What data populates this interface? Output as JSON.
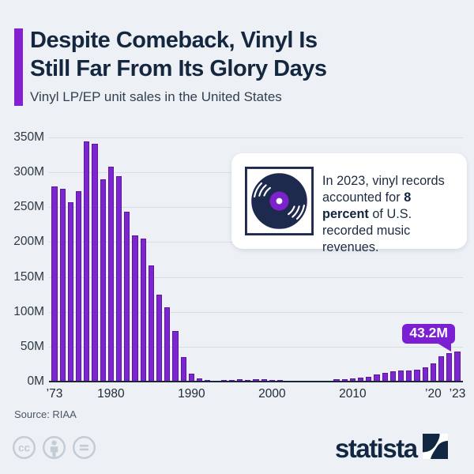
{
  "header": {
    "title_lines": [
      "Despite Comeback, Vinyl Is",
      "Still Far From Its Glory Days"
    ],
    "subtitle": "Vinyl LP/EP unit sales in the United States"
  },
  "callout": {
    "icon": "vinyl-record-icon",
    "text_before": "In 2023, vinyl records accounted for ",
    "text_bold": "8 percent",
    "text_after": " of U.S. recorded music revenues."
  },
  "chart_data": {
    "type": "bar",
    "title": "Vinyl LP/EP unit sales in the United States",
    "unit": "million units",
    "ylim": [
      0,
      350
    ],
    "grid": true,
    "bar_color": "#7D26CF",
    "yticks": [
      {
        "value": 0,
        "label": "0M"
      },
      {
        "value": 50,
        "label": "50M"
      },
      {
        "value": 100,
        "label": "100M"
      },
      {
        "value": 150,
        "label": "150M"
      },
      {
        "value": 200,
        "label": "200M"
      },
      {
        "value": 250,
        "label": "250M"
      },
      {
        "value": 300,
        "label": "300M"
      },
      {
        "value": 350,
        "label": "350M"
      }
    ],
    "xticks": [
      {
        "year": 1973,
        "label": "’73"
      },
      {
        "year": 1980,
        "label": "1980"
      },
      {
        "year": 1990,
        "label": "1990"
      },
      {
        "year": 2000,
        "label": "2000"
      },
      {
        "year": 2010,
        "label": "2010"
      },
      {
        "year": 2020,
        "label": "’20"
      },
      {
        "year": 2023,
        "label": "’23"
      }
    ],
    "years_start": 1973,
    "years_end": 2023,
    "values": [
      280,
      276,
      257,
      273,
      344,
      341,
      290,
      308,
      295,
      244,
      210,
      205,
      167,
      125,
      107,
      72,
      35,
      11.7,
      4.8,
      2.4,
      1.5,
      1.9,
      2.2,
      2.9,
      2.7,
      3.4,
      2.9,
      2.2,
      2.3,
      1.7,
      1.5,
      1.4,
      1.0,
      0.9,
      1.3,
      2.9,
      3.5,
      4.2,
      5.5,
      6.5,
      10,
      12.5,
      14.5,
      15.5,
      16,
      17,
      20,
      26,
      36.5,
      40.5,
      43.2
    ],
    "annotation": {
      "year": 2023,
      "label": "43.2M"
    }
  },
  "footer": {
    "source": "Source: RIAA",
    "license_icons": [
      "cc-icon",
      "attribution-icon",
      "no-derivatives-icon"
    ],
    "brand": "statista"
  },
  "colors": {
    "background": "#EDF1F6",
    "accent_purple": "#8520D2",
    "bar_purple": "#7D26CF",
    "pill_purple": "#7C1FD2",
    "navy": "#14273F"
  }
}
